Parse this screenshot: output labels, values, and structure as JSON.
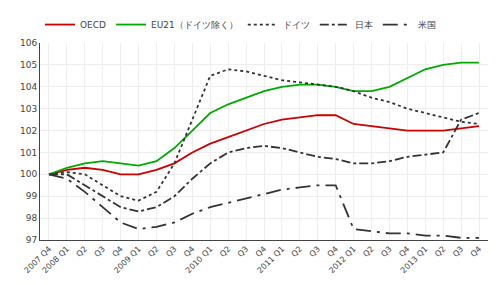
{
  "chart_data": {
    "type": "line",
    "categories": [
      "2007 Q4",
      "2008 Q1",
      "Q2",
      "Q3",
      "Q4",
      "2009 Q1",
      "Q2",
      "Q3",
      "Q4",
      "2010 Q1",
      "Q2",
      "Q3",
      "Q4",
      "2011 Q1",
      "Q2",
      "Q3",
      "Q4",
      "2012 Q1",
      "Q2",
      "Q3",
      "Q4",
      "2013 Q1",
      "Q2",
      "Q3",
      "Q4"
    ],
    "series": [
      {
        "name": "OECD",
        "color": "#cc0000",
        "line_style": "solid",
        "values": [
          100.0,
          100.2,
          100.3,
          100.2,
          100.0,
          100.0,
          100.2,
          100.5,
          101.0,
          101.4,
          101.7,
          102.0,
          102.3,
          102.5,
          102.6,
          102.7,
          102.7,
          102.3,
          102.2,
          102.1,
          102.0,
          102.0,
          102.0,
          102.1,
          102.2
        ]
      },
      {
        "name": "EU21（ドイツ除く）",
        "color": "#00aa00",
        "line_style": "solid",
        "values": [
          100.0,
          100.3,
          100.5,
          100.6,
          100.5,
          100.4,
          100.6,
          101.2,
          102.0,
          102.8,
          103.2,
          103.5,
          103.8,
          104.0,
          104.1,
          104.1,
          104.0,
          103.8,
          103.8,
          104.0,
          104.4,
          104.8,
          105.0,
          105.1,
          105.1
        ]
      },
      {
        "name": "ドイツ",
        "color": "#333333",
        "line_style": "dotted",
        "values": [
          100.0,
          100.1,
          100.0,
          99.5,
          99.0,
          98.8,
          99.2,
          100.5,
          102.5,
          104.5,
          104.8,
          104.7,
          104.5,
          104.3,
          104.2,
          104.1,
          104.0,
          103.8,
          103.5,
          103.3,
          103.0,
          102.8,
          102.6,
          102.4,
          102.3
        ]
      },
      {
        "name": "日本",
        "color": "#333333",
        "line_style": "dashdot",
        "values": [
          100.0,
          100.0,
          99.5,
          99.0,
          98.5,
          98.3,
          98.5,
          99.0,
          99.8,
          100.5,
          101.0,
          101.2,
          101.3,
          101.2,
          101.0,
          100.8,
          100.7,
          100.5,
          100.5,
          100.6,
          100.8,
          100.9,
          101.0,
          102.5,
          102.8
        ]
      },
      {
        "name": "米国",
        "color": "#333333",
        "line_style": "longdashdot",
        "values": [
          100.0,
          99.8,
          99.2,
          98.5,
          97.8,
          97.5,
          97.6,
          97.8,
          98.2,
          98.5,
          98.7,
          98.9,
          99.1,
          99.3,
          99.4,
          99.5,
          99.5,
          97.5,
          97.4,
          97.3,
          97.3,
          97.2,
          97.2,
          97.1,
          97.1
        ]
      }
    ],
    "ylim": [
      97,
      106
    ],
    "yticks": [
      97,
      98,
      99,
      100,
      101,
      102,
      103,
      104,
      105,
      106
    ],
    "grid": true,
    "legend": "upper left"
  }
}
